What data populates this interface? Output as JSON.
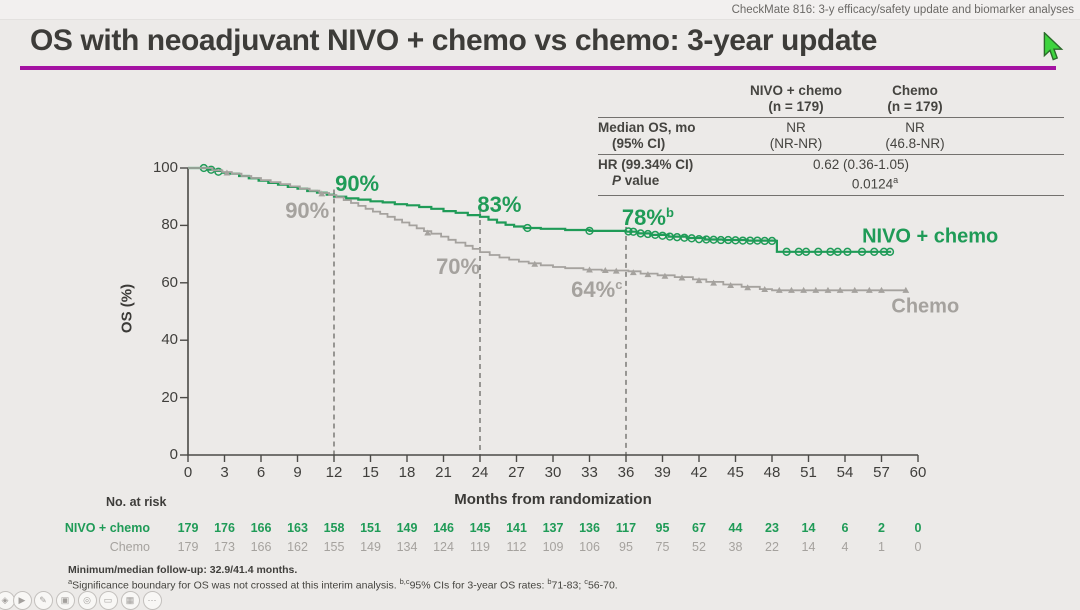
{
  "header": {
    "context_label": "CheckMate 816: 3-y efficacy/safety update and biomarker analyses"
  },
  "title": {
    "text": "OS with neoadjuvant NIVO + chemo vs chemo: 3-year update"
  },
  "colors": {
    "nivo_green": "#1f9b57",
    "chemo_gray": "#a5a29e",
    "accent_purple": "#a412a2",
    "cursor_green": "#3ed43e",
    "text_dark": "#3d3c39"
  },
  "summary_table": {
    "col_headers": [
      {
        "line1": "NIVO + chemo",
        "line2": "(n = 179)"
      },
      {
        "line1": "Chemo",
        "line2": "(n = 179)"
      }
    ],
    "median_label_line1": "Median OS, mo",
    "median_label_line2": "(95% CI)",
    "median_nivo_line1": "NR",
    "median_nivo_line2": "(NR-NR)",
    "median_chemo_line1": "NR",
    "median_chemo_line2": "(46.8-NR)",
    "hr_label": "HR (99.34% CI)",
    "hr_value": "0.62 (0.36-1.05)",
    "p_label_italic": "P",
    "p_label_rest": " value",
    "p_value": "0.0124",
    "p_value_sup": "a"
  },
  "chart_data": {
    "type": "line",
    "subtype": "kaplan-meier",
    "title": "",
    "xlabel": "Months from randomization",
    "ylabel": "OS (%)",
    "xlim": [
      0,
      60
    ],
    "ylim": [
      0,
      100
    ],
    "x_ticks": [
      0,
      3,
      6,
      9,
      12,
      15,
      18,
      21,
      24,
      27,
      30,
      33,
      36,
      39,
      42,
      45,
      48,
      51,
      54,
      57,
      60
    ],
    "y_ticks": [
      0,
      20,
      40,
      60,
      80,
      100
    ],
    "grid": false,
    "dashed_timepoints": [
      {
        "month": 12,
        "top_pct": 92.5
      },
      {
        "month": 24,
        "top_pct": 85
      },
      {
        "month": 36,
        "top_pct": 79.5
      }
    ],
    "series": [
      {
        "name": "NIVO + chemo",
        "color": "#1f9b57",
        "marker": "circle",
        "points": [
          [
            0,
            100
          ],
          [
            1.2,
            100
          ],
          [
            1.6,
            99.4
          ],
          [
            2.2,
            99
          ],
          [
            2.8,
            98.4
          ],
          [
            3.4,
            98
          ],
          [
            4.2,
            97.2
          ],
          [
            5,
            96.4
          ],
          [
            5.8,
            95.6
          ],
          [
            6.6,
            94.8
          ],
          [
            7.4,
            94.2
          ],
          [
            8.2,
            93.4
          ],
          [
            9,
            92.8
          ],
          [
            9.8,
            92
          ],
          [
            10.6,
            91.4
          ],
          [
            11.4,
            90.7
          ],
          [
            12,
            90
          ],
          [
            13,
            89.4
          ],
          [
            14,
            89
          ],
          [
            15,
            88.4
          ],
          [
            16,
            88
          ],
          [
            17,
            87.4
          ],
          [
            18,
            87
          ],
          [
            19,
            86.4
          ],
          [
            20,
            85.8
          ],
          [
            21,
            85
          ],
          [
            22,
            84.4
          ],
          [
            23,
            83.6
          ],
          [
            24,
            83
          ],
          [
            24.7,
            82
          ],
          [
            25.4,
            81
          ],
          [
            26.1,
            80.2
          ],
          [
            26.8,
            79.6
          ],
          [
            27.6,
            79.1
          ],
          [
            29,
            78.8
          ],
          [
            31,
            78.4
          ],
          [
            33,
            78.1
          ],
          [
            36,
            77.8
          ],
          [
            37,
            77.2
          ],
          [
            38,
            76.7
          ],
          [
            39.5,
            76.1
          ],
          [
            41,
            75.6
          ],
          [
            42.5,
            75.1
          ],
          [
            44,
            74.9
          ],
          [
            46,
            74.7
          ],
          [
            48.3,
            74.6
          ],
          [
            48.4,
            70.8
          ],
          [
            57.8,
            70.8
          ]
        ],
        "censor_marks": [
          [
            1.3,
            100
          ],
          [
            1.9,
            99.4
          ],
          [
            2.5,
            98.7
          ],
          [
            27.9,
            79.1
          ],
          [
            33,
            78.1
          ],
          [
            36.2,
            77.9
          ],
          [
            36.6,
            77.8
          ],
          [
            37.2,
            77.2
          ],
          [
            37.8,
            77
          ],
          [
            38.4,
            76.7
          ],
          [
            39,
            76.4
          ],
          [
            39.6,
            76.1
          ],
          [
            40.2,
            75.9
          ],
          [
            40.8,
            75.7
          ],
          [
            41.4,
            75.5
          ],
          [
            42,
            75.2
          ],
          [
            42.6,
            75.1
          ],
          [
            43.2,
            75
          ],
          [
            43.8,
            74.9
          ],
          [
            44.4,
            74.9
          ],
          [
            45,
            74.8
          ],
          [
            45.6,
            74.7
          ],
          [
            46.2,
            74.7
          ],
          [
            46.8,
            74.7
          ],
          [
            47.4,
            74.6
          ],
          [
            48,
            74.6
          ],
          [
            49.2,
            70.8
          ],
          [
            50.2,
            70.8
          ],
          [
            50.8,
            70.8
          ],
          [
            51.8,
            70.8
          ],
          [
            52.8,
            70.8
          ],
          [
            53.4,
            70.8
          ],
          [
            54.2,
            70.8
          ],
          [
            55.4,
            70.8
          ],
          [
            56.4,
            70.8
          ],
          [
            57.2,
            70.8
          ],
          [
            57.7,
            70.8
          ]
        ]
      },
      {
        "name": "Chemo",
        "color": "#a5a29e",
        "marker": "triangle",
        "points": [
          [
            0,
            100
          ],
          [
            1.4,
            100
          ],
          [
            2,
            99.2
          ],
          [
            2.8,
            98.6
          ],
          [
            3.6,
            98
          ],
          [
            4.4,
            97.2
          ],
          [
            5.2,
            96.5
          ],
          [
            6,
            95.8
          ],
          [
            6.8,
            95.1
          ],
          [
            7.6,
            94.4
          ],
          [
            8.4,
            93.6
          ],
          [
            9.2,
            92.8
          ],
          [
            10,
            92.1
          ],
          [
            10.8,
            91.3
          ],
          [
            11.6,
            90.6
          ],
          [
            12.2,
            89.8
          ],
          [
            12.8,
            88.8
          ],
          [
            13.4,
            87.8
          ],
          [
            14,
            86.8
          ],
          [
            14.6,
            85.8
          ],
          [
            15.2,
            84.8
          ],
          [
            15.8,
            84
          ],
          [
            16.4,
            83
          ],
          [
            17,
            82
          ],
          [
            17.6,
            81
          ],
          [
            18.2,
            80
          ],
          [
            18.8,
            79
          ],
          [
            19.4,
            78
          ],
          [
            20,
            77.1
          ],
          [
            20.8,
            76.1
          ],
          [
            21.4,
            75
          ],
          [
            22,
            74
          ],
          [
            22.8,
            72.9
          ],
          [
            23.4,
            71.8
          ],
          [
            24,
            70.7
          ],
          [
            24.8,
            69.7
          ],
          [
            25.6,
            68.8
          ],
          [
            26.4,
            68.1
          ],
          [
            27.2,
            67.4
          ],
          [
            28,
            66.8
          ],
          [
            29,
            66.1
          ],
          [
            30,
            65.5
          ],
          [
            31,
            65.1
          ],
          [
            32.5,
            64.6
          ],
          [
            34,
            64.3
          ],
          [
            36.2,
            64
          ],
          [
            37.2,
            63.2
          ],
          [
            38.6,
            62.6
          ],
          [
            40,
            62
          ],
          [
            41.5,
            61.2
          ],
          [
            42.6,
            60.3
          ],
          [
            44,
            59.4
          ],
          [
            45.5,
            58.6
          ],
          [
            47,
            57.8
          ],
          [
            48,
            57.4
          ],
          [
            59,
            57.4
          ]
        ],
        "censor_marks": [
          [
            3.2,
            98.3
          ],
          [
            11,
            91
          ],
          [
            19.7,
            77.4
          ],
          [
            28.5,
            66.5
          ],
          [
            33,
            64.5
          ],
          [
            34.3,
            64.3
          ],
          [
            35.2,
            64.1
          ],
          [
            36.6,
            63.6
          ],
          [
            37.8,
            62.9
          ],
          [
            39.2,
            62.3
          ],
          [
            40.6,
            61.7
          ],
          [
            42,
            60.8
          ],
          [
            43.2,
            59.9
          ],
          [
            44.6,
            59.1
          ],
          [
            46,
            58.3
          ],
          [
            47.4,
            57.7
          ],
          [
            48.6,
            57.4
          ],
          [
            49.6,
            57.4
          ],
          [
            50.6,
            57.4
          ],
          [
            51.6,
            57.4
          ],
          [
            52.6,
            57.4
          ],
          [
            53.6,
            57.4
          ],
          [
            54.8,
            57.4
          ],
          [
            56,
            57.4
          ],
          [
            57,
            57.4
          ],
          [
            59,
            57.4
          ]
        ]
      }
    ],
    "annotations": [
      {
        "text": "90%",
        "sup": "",
        "series": "NIVO + chemo",
        "month": 13.9,
        "pct": 94.4
      },
      {
        "text": "90%",
        "sup": "",
        "series": "Chemo",
        "month": 9.8,
        "pct": 85.0
      },
      {
        "text": "83%",
        "sup": "",
        "series": "NIVO + chemo",
        "month": 25.6,
        "pct": 87.1
      },
      {
        "text": "70%",
        "sup": "",
        "series": "Chemo",
        "month": 22.2,
        "pct": 65.5
      },
      {
        "text": "78%",
        "sup": "b",
        "series": "NIVO + chemo",
        "month": 37.8,
        "pct": 82.6
      },
      {
        "text": "64%",
        "sup": "c",
        "series": "Chemo",
        "month": 33.6,
        "pct": 57.5
      }
    ],
    "series_labels": [
      {
        "text": "NIVO + chemo",
        "series": "NIVO + chemo",
        "month": 61.0,
        "pct": 76.0
      },
      {
        "text": "Chemo",
        "series": "Chemo",
        "month": 60.6,
        "pct": 51.6
      }
    ],
    "landmark_os_rates": {
      "12mo": {
        "nivo_chemo": "90%",
        "chemo": "90%"
      },
      "24mo": {
        "nivo_chemo": "83%",
        "chemo": "70%"
      },
      "36mo": {
        "nivo_chemo": "78%",
        "chemo": "64%"
      }
    }
  },
  "at_risk": {
    "title": "No. at risk",
    "rows": [
      {
        "label": "NIVO + chemo",
        "color": "#1f9b57",
        "weight": "700",
        "values": [
          "179",
          "176",
          "166",
          "163",
          "158",
          "151",
          "149",
          "146",
          "145",
          "141",
          "137",
          "136",
          "117",
          "95",
          "67",
          "44",
          "23",
          "14",
          "6",
          "2",
          "0"
        ]
      },
      {
        "label": "Chemo",
        "color": "#a5a29e",
        "weight": "400",
        "values": [
          "179",
          "173",
          "166",
          "162",
          "155",
          "149",
          "134",
          "124",
          "119",
          "112",
          "109",
          "106",
          "95",
          "75",
          "52",
          "38",
          "22",
          "14",
          "4",
          "1",
          "0"
        ]
      }
    ]
  },
  "footnotes": {
    "line1": "Minimum/median follow-up: 32.9/41.4 months.",
    "line2_parts": [
      {
        "sup": "a",
        "text": ""
      },
      {
        "sup": "",
        "text": "Significance boundary for OS was not crossed at this interim analysis. "
      },
      {
        "sup": "b,c",
        "text": ""
      },
      {
        "sup": "",
        "text": "95% CIs for 3-year OS rates: "
      },
      {
        "sup": "b",
        "text": ""
      },
      {
        "sup": "",
        "text": "71-83; "
      },
      {
        "sup": "c",
        "text": ""
      },
      {
        "sup": "",
        "text": "56-70."
      }
    ]
  },
  "toolbar": {
    "icons": [
      {
        "name": "pointer-tool-icon",
        "glyph": "◈"
      },
      {
        "name": "play-icon",
        "glyph": "▶"
      },
      {
        "name": "pencil-icon",
        "glyph": "✎"
      },
      {
        "name": "save-icon",
        "glyph": "▣"
      },
      {
        "name": "zoom-icon",
        "glyph": "◎"
      },
      {
        "name": "whiteboard-icon",
        "glyph": "▭"
      },
      {
        "name": "camera-icon",
        "glyph": "▦"
      },
      {
        "name": "more-icon",
        "glyph": "⋯"
      }
    ]
  }
}
